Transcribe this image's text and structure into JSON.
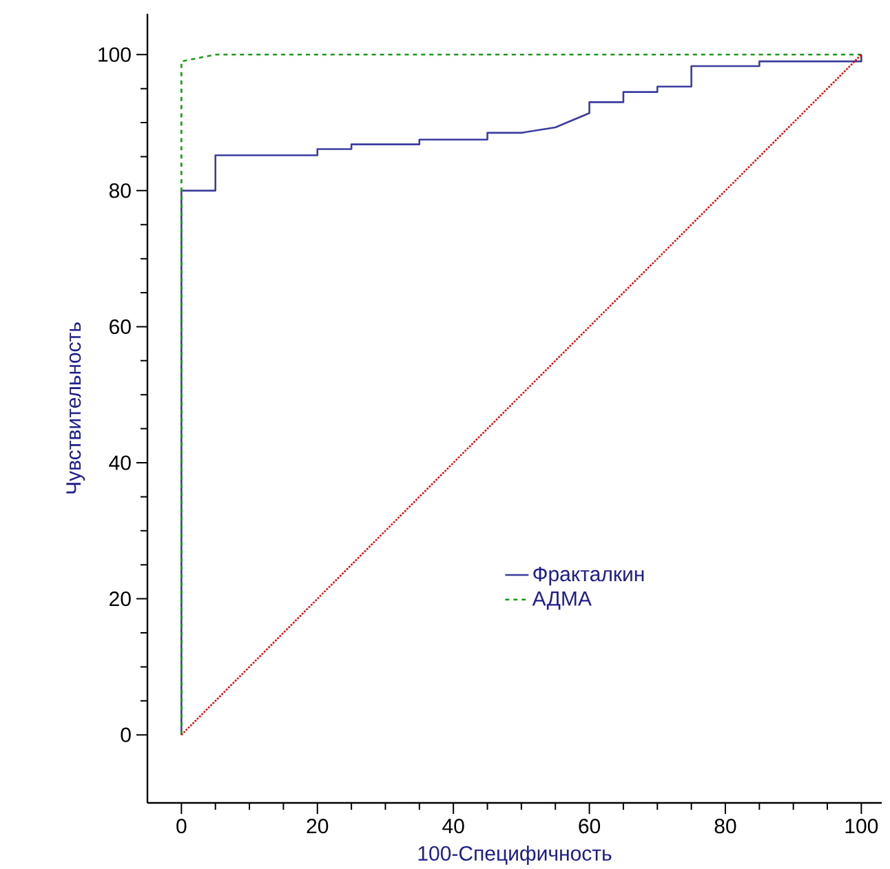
{
  "chart_data": {
    "type": "line",
    "xlabel": "100-Специфичность",
    "ylabel": "Чувствительность",
    "xlim": [
      -5,
      103
    ],
    "ylim": [
      -10,
      106
    ],
    "xticks": [
      0,
      20,
      40,
      60,
      80,
      100
    ],
    "yticks": [
      0,
      20,
      40,
      60,
      80,
      100
    ],
    "grid": false,
    "legend": "bottom right",
    "marker": "none",
    "series": [
      {
        "name": "Фракталкин",
        "color": "#3c3ca0",
        "line_style": "solid",
        "x": [
          0,
          0,
          5,
          5,
          20,
          20,
          25,
          25,
          35,
          35,
          45,
          45,
          50,
          55,
          60,
          60,
          65,
          65,
          70,
          70,
          75,
          75,
          85,
          85,
          100,
          100
        ],
        "values": [
          0,
          80,
          80,
          85.2,
          85.2,
          86.1,
          86.1,
          86.8,
          86.8,
          87.5,
          87.5,
          88.5,
          88.5,
          89.3,
          91.4,
          93,
          93,
          94.5,
          94.5,
          95.3,
          95.3,
          98.3,
          98.3,
          99,
          99,
          100
        ]
      },
      {
        "name": "АДМА",
        "color": "#1a9a1a",
        "line_style": "dashed",
        "x": [
          0,
          0,
          5,
          100
        ],
        "values": [
          0,
          99,
          100,
          100
        ]
      },
      {
        "color": "#ff0000",
        "line_style": "dotted",
        "x": [
          0,
          100
        ],
        "values": [
          0,
          100
        ]
      }
    ]
  }
}
